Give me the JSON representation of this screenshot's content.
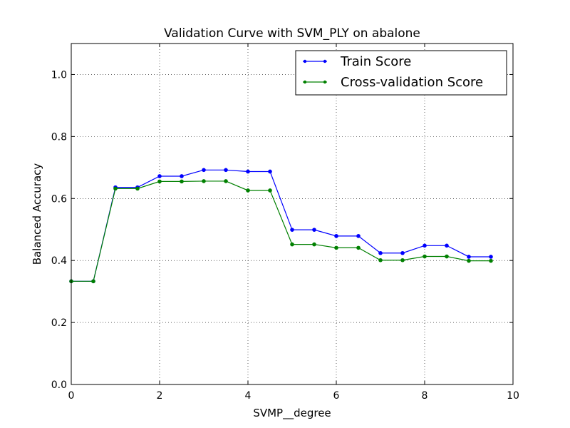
{
  "chart_data": {
    "type": "line",
    "title": "Validation Curve with SVM_PLY on abalone",
    "xlabel": "SVMP__degree",
    "ylabel": "Balanced Accuracy",
    "xlim": [
      0,
      10
    ],
    "ylim": [
      0.0,
      1.1
    ],
    "xticks": [
      0,
      2,
      4,
      6,
      8,
      10
    ],
    "xtick_labels": [
      "0",
      "2",
      "4",
      "6",
      "8",
      "10"
    ],
    "yticks": [
      0.0,
      0.2,
      0.4,
      0.6,
      0.8,
      1.0
    ],
    "ytick_labels": [
      "0.0",
      "0.2",
      "0.4",
      "0.6",
      "0.8",
      "1.0"
    ],
    "grid": true,
    "legend_position": "top-right",
    "x": [
      0,
      0.5,
      1,
      1.5,
      2,
      2.5,
      3,
      3.5,
      4,
      4.5,
      5,
      5.5,
      6,
      6.5,
      7,
      7.5,
      8,
      8.5,
      9,
      9.5
    ],
    "series": [
      {
        "name": "Train Score",
        "color": "#0000ff",
        "values": [
          0.333,
          0.333,
          0.636,
          0.636,
          0.672,
          0.672,
          0.692,
          0.692,
          0.687,
          0.687,
          0.499,
          0.499,
          0.479,
          0.479,
          0.424,
          0.424,
          0.448,
          0.448,
          0.412,
          0.412
        ]
      },
      {
        "name": "Cross-validation Score",
        "color": "#008000",
        "values": [
          0.333,
          0.333,
          0.632,
          0.632,
          0.655,
          0.655,
          0.656,
          0.656,
          0.626,
          0.626,
          0.452,
          0.452,
          0.441,
          0.441,
          0.401,
          0.401,
          0.413,
          0.413,
          0.399,
          0.399
        ]
      }
    ]
  }
}
